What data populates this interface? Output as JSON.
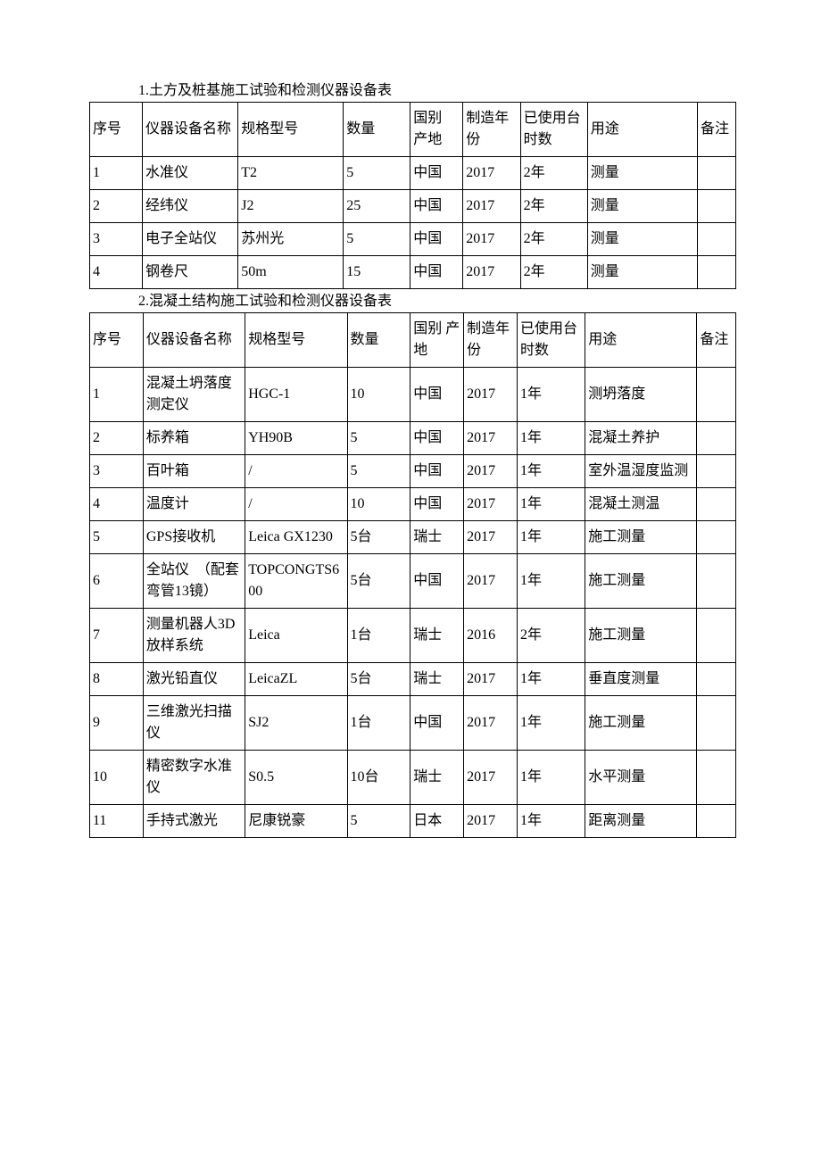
{
  "table1": {
    "title": "1.土方及桩基施工试验和检测仪器设备表",
    "headers": [
      "序号",
      "仪器设备名称",
      "规格型号",
      "数量",
      "国别\n产地",
      "制造年份",
      "已使用台时数",
      "用途",
      "备注"
    ],
    "rows": [
      [
        "1",
        "水准仪",
        "T2",
        "5",
        "中国",
        "2017",
        "2年",
        "测量",
        ""
      ],
      [
        "2",
        "经纬仪",
        "J2",
        "25",
        "中国",
        "2017",
        "2年",
        "测量",
        ""
      ],
      [
        "3",
        "电子全站仪",
        "苏州光",
        "5",
        "中国",
        "2017",
        "2年",
        "测量",
        ""
      ],
      [
        "4",
        "钢卷尺",
        "50m",
        "15",
        "中国",
        "2017",
        "2年",
        "测量",
        ""
      ]
    ]
  },
  "table2": {
    "title": "2.混凝土结构施工试验和检测仪器设备表",
    "headers": [
      "序号",
      "仪器设备名称",
      "规格型号",
      "数量",
      "国别\n产地",
      "制造年份",
      "已使用台时数",
      "用途",
      "备注"
    ],
    "rows": [
      [
        "1",
        "混凝土坍落度测定仪",
        "HGC-1",
        "10",
        "中国",
        "2017",
        "1年",
        "测坍落度",
        ""
      ],
      [
        "2",
        "标养箱",
        "YH90B",
        "5",
        "中国",
        "2017",
        "1年",
        "混凝土养护",
        ""
      ],
      [
        "3",
        "百叶箱",
        "/",
        "5",
        "中国",
        "2017",
        "1年",
        "室外温湿度监测",
        ""
      ],
      [
        "4",
        "温度计",
        "/",
        "10",
        "中国",
        "2017",
        "1年",
        "混凝土测温",
        ""
      ],
      [
        "5",
        "GPS接收机",
        "Leica GX1230",
        "5台",
        "瑞士",
        "2017",
        "1年",
        "施工测量",
        ""
      ],
      [
        "6",
        "全站仪　（配套弯管13镜）",
        "TOPCONGTS600",
        "5台",
        "中国",
        "2017",
        "1年",
        "施工测量",
        ""
      ],
      [
        "7",
        "测量机器人3D放样系统",
        "Leica",
        "1台",
        "瑞士",
        "2016",
        "2年",
        "施工测量",
        ""
      ],
      [
        "8",
        "激光铅直仪",
        "LeicaZL",
        "5台",
        "瑞士",
        "2017",
        "1年",
        "垂直度测量",
        ""
      ],
      [
        "9",
        "三维激光扫描仪",
        "SJ2",
        "1台",
        "中国",
        "2017",
        "1年",
        "施工测量",
        ""
      ],
      [
        "10",
        "精密数字水准仪",
        "S0.5",
        "10台",
        "瑞士",
        "2017",
        "1年",
        "水平测量",
        ""
      ],
      [
        "11",
        "手持式激光",
        "尼康锐豪",
        "5",
        "日本",
        "2017",
        "1年",
        "距离测量",
        ""
      ]
    ]
  }
}
